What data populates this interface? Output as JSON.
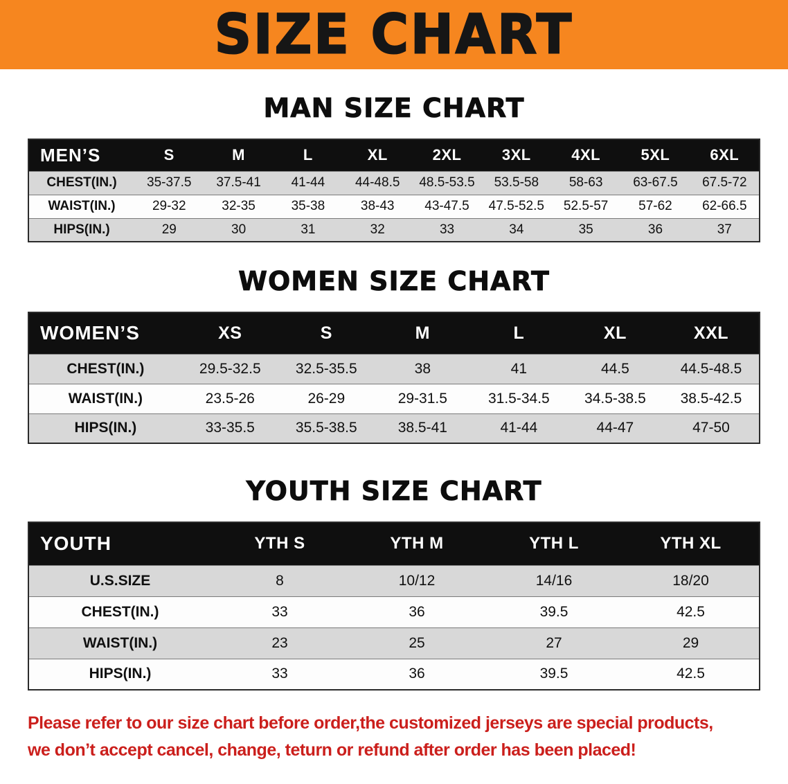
{
  "banner": {
    "title": "SIZE CHART"
  },
  "colors": {
    "banner_bg": "#f6861f",
    "title_fg": "#161616",
    "header_bg": "#0f0f0f",
    "stripe_bg": "#d8d8d8",
    "footer_fg": "#cb1f1c"
  },
  "sections": [
    {
      "heading": "MAN SIZE CHART",
      "table": {
        "header": [
          "MEN’S",
          "S",
          "M",
          "L",
          "XL",
          "2XL",
          "3XL",
          "4XL",
          "5XL",
          "6XL"
        ],
        "rows": [
          [
            "CHEST(IN.)",
            "35-37.5",
            "37.5-41",
            "41-44",
            "44-48.5",
            "48.5-53.5",
            "53.5-58",
            "58-63",
            "63-67.5",
            "67.5-72"
          ],
          [
            "WAIST(IN.)",
            "29-32",
            "32-35",
            "35-38",
            "38-43",
            "43-47.5",
            "47.5-52.5",
            "52.5-57",
            "57-62",
            "62-66.5"
          ],
          [
            "HIPS(IN.)",
            "29",
            "30",
            "31",
            "32",
            "33",
            "34",
            "35",
            "36",
            "37"
          ]
        ]
      }
    },
    {
      "heading": "WOMEN SIZE CHART",
      "table": {
        "header": [
          "WOMEN’S",
          "XS",
          "S",
          "M",
          "L",
          "XL",
          "XXL"
        ],
        "rows": [
          [
            "CHEST(IN.)",
            "29.5-32.5",
            "32.5-35.5",
            "38",
            "41",
            "44.5",
            "44.5-48.5"
          ],
          [
            "WAIST(IN.)",
            "23.5-26",
            "26-29",
            "29-31.5",
            "31.5-34.5",
            "34.5-38.5",
            "38.5-42.5"
          ],
          [
            "HIPS(IN.)",
            "33-35.5",
            "35.5-38.5",
            "38.5-41",
            "41-44",
            "44-47",
            "47-50"
          ]
        ]
      }
    },
    {
      "heading": "YOUTH SIZE CHART",
      "table": {
        "header": [
          "YOUTH",
          "YTH S",
          "YTH M",
          "YTH L",
          "YTH XL"
        ],
        "rows": [
          [
            "U.S.SIZE",
            "8",
            "10/12",
            "14/16",
            "18/20"
          ],
          [
            "CHEST(IN.)",
            "33",
            "36",
            "39.5",
            "42.5"
          ],
          [
            "WAIST(IN.)",
            "23",
            "25",
            "27",
            "29"
          ],
          [
            "HIPS(IN.)",
            "33",
            "36",
            "39.5",
            "42.5"
          ]
        ]
      }
    }
  ],
  "footer": {
    "line1": "Please refer to our size chart before order,the customized jerseys are special products,",
    "line2": "we don’t accept cancel, change, teturn or refund after order has been placed!"
  }
}
